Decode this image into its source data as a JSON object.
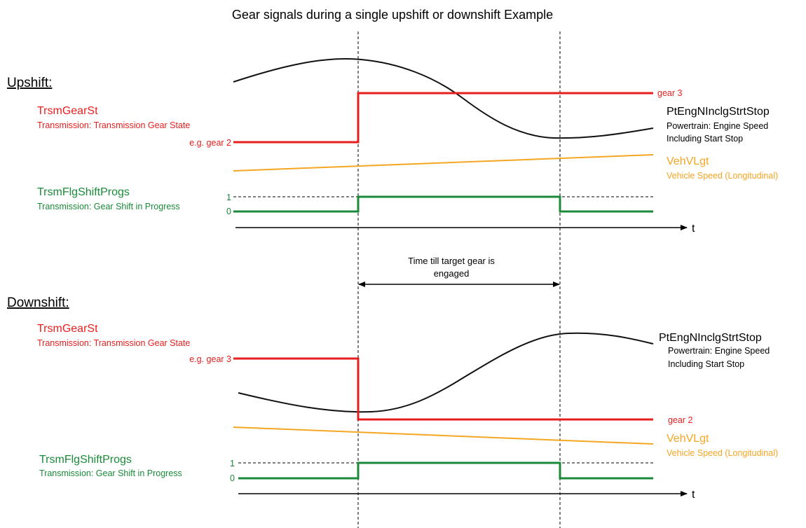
{
  "title": "Gear signals during a single upshift or downshift Example",
  "colors": {
    "gear": "#e81e1e",
    "speed": "#f5a623",
    "flag": "#1a8a3a",
    "engine": "#111111",
    "axis": "#000000"
  },
  "duration_annotation": {
    "line1": "Time till target gear is",
    "line2": "engaged"
  },
  "upshift": {
    "heading": "Upshift:",
    "gear_signal": {
      "name": "TrsmGearSt",
      "description": "Transmission: Transmission Gear State",
      "start_label": "e.g. gear 2",
      "end_label": "gear 3"
    },
    "engine_signal": {
      "name": "PtEngNInclgStrtStop",
      "description_line1": "Powertrain: Engine Speed",
      "description_line2": "Including Start Stop"
    },
    "speed_signal": {
      "name": "VehVLgt",
      "description": "Vehicle Speed (Longitudinal)"
    },
    "flag_signal": {
      "name": "TrsmFlgShiftProgs",
      "description": "Transmission: Gear Shift in Progress",
      "level_high": "1",
      "level_low": "0"
    },
    "time_axis": "t"
  },
  "downshift": {
    "heading": "Downshift:",
    "gear_signal": {
      "name": "TrsmGearSt",
      "description": "Transmission: Transmission Gear State",
      "start_label": "e.g. gear 3",
      "end_label": "gear 2"
    },
    "engine_signal": {
      "name": "PtEngNInclgStrtStop",
      "description_line1": "Powertrain: Engine Speed",
      "description_line2": "Including Start Stop"
    },
    "speed_signal": {
      "name": "VehVLgt",
      "description": "Vehicle Speed (Longitudinal)"
    },
    "flag_signal": {
      "name": "TrsmFlgShiftProgs",
      "description": "Transmission: Gear Shift in Progress",
      "level_high": "1",
      "level_low": "0"
    },
    "time_axis": "t"
  }
}
